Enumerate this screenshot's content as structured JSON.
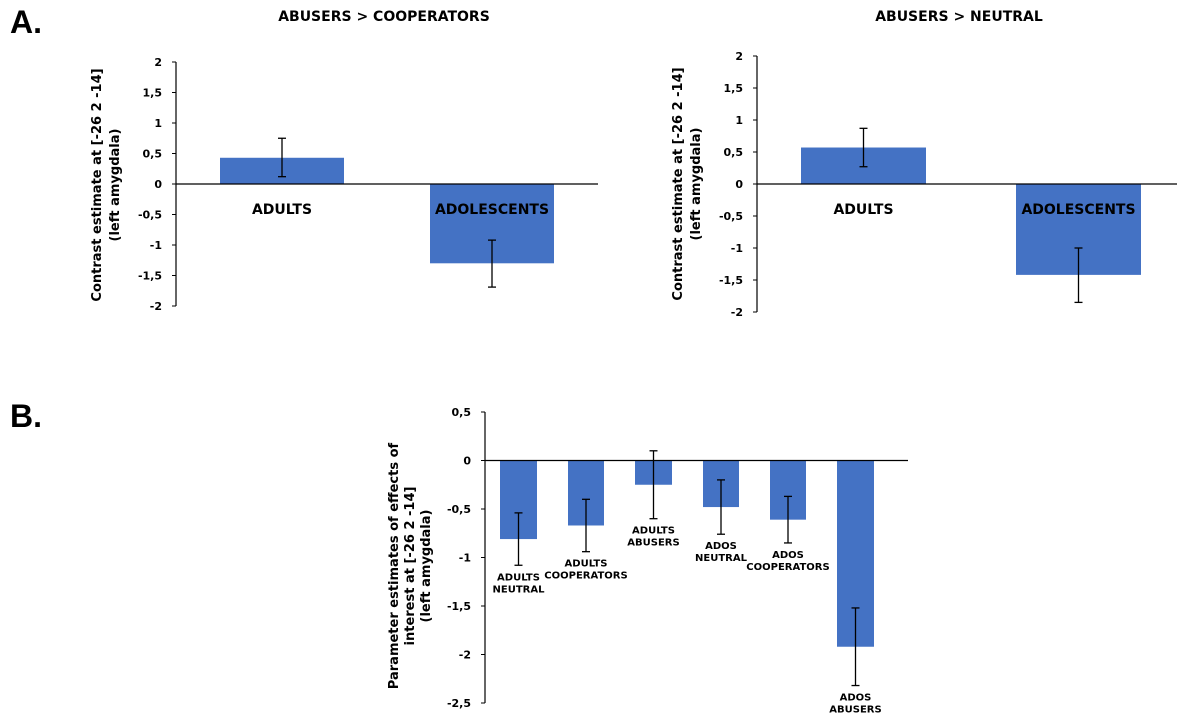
{
  "panel_labels": [
    "A.",
    "B."
  ],
  "colors": {
    "bar": "#4472C4",
    "axis": "#000000",
    "errorbar": "#000000"
  },
  "chart_data": [
    {
      "type": "bar",
      "title": "ABUSERS > COOPERATORS",
      "ylabel_lines": [
        "Contrast estimate at [-26 2 -14]",
        "(left amygdala)"
      ],
      "categories": [
        "ADULTS",
        "ADOLESCENTS"
      ],
      "values": [
        0.43,
        -1.3
      ],
      "error_low": [
        0.12,
        -1.69
      ],
      "error_high": [
        0.75,
        -0.92
      ],
      "ylim": [
        -2,
        2
      ],
      "yticks": [
        2,
        1.5,
        1,
        0.5,
        0,
        -0.5,
        -1,
        -1.5,
        -2
      ],
      "ytick_labels": [
        "2",
        "1,5",
        "1",
        "0,5",
        "0",
        "-0,5",
        "-1",
        "-1,5",
        "-2"
      ]
    },
    {
      "type": "bar",
      "title": "ABUSERS > NEUTRAL",
      "ylabel_lines": [
        "Contrast estimate at [-26 2 -14]",
        "(left amygdala)"
      ],
      "categories": [
        "ADULTS",
        "ADOLESCENTS"
      ],
      "values": [
        0.57,
        -1.42
      ],
      "error_low": [
        0.27,
        -1.85
      ],
      "error_high": [
        0.87,
        -1.0
      ],
      "ylim": [
        -2,
        2
      ],
      "yticks": [
        2,
        1.5,
        1,
        0.5,
        0,
        -0.5,
        -1,
        -1.5,
        -2
      ],
      "ytick_labels": [
        "2",
        "1,5",
        "1",
        "0,5",
        "0",
        "-0,5",
        "-1",
        "-1,5",
        "-2"
      ]
    },
    {
      "type": "bar",
      "title": "",
      "ylabel_lines": [
        "Parameter estimates of effects of",
        "interest at [-26 2 -14]",
        "(left amygdala)"
      ],
      "categories": [
        [
          "ADULTS",
          "NEUTRAL"
        ],
        [
          "ADULTS",
          "COOPERATORS"
        ],
        [
          "ADULTS",
          "ABUSERS"
        ],
        [
          "ADOS",
          "NEUTRAL"
        ],
        [
          "ADOS",
          "COOPERATORS"
        ],
        [
          "ADOS",
          "ABUSERS"
        ]
      ],
      "values": [
        -0.81,
        -0.67,
        -0.25,
        -0.48,
        -0.61,
        -1.92
      ],
      "error_low": [
        -1.08,
        -0.94,
        -0.6,
        -0.76,
        -0.85,
        -2.32
      ],
      "error_high": [
        -0.54,
        -0.4,
        0.1,
        -0.2,
        -0.37,
        -1.52
      ],
      "ylim": [
        -2.5,
        0.5
      ],
      "yticks": [
        0.5,
        0,
        -0.5,
        -1,
        -1.5,
        -2,
        -2.5
      ],
      "ytick_labels": [
        "0,5",
        "0",
        "-0,5",
        "-1",
        "-1,5",
        "-2",
        "-2,5"
      ]
    }
  ]
}
